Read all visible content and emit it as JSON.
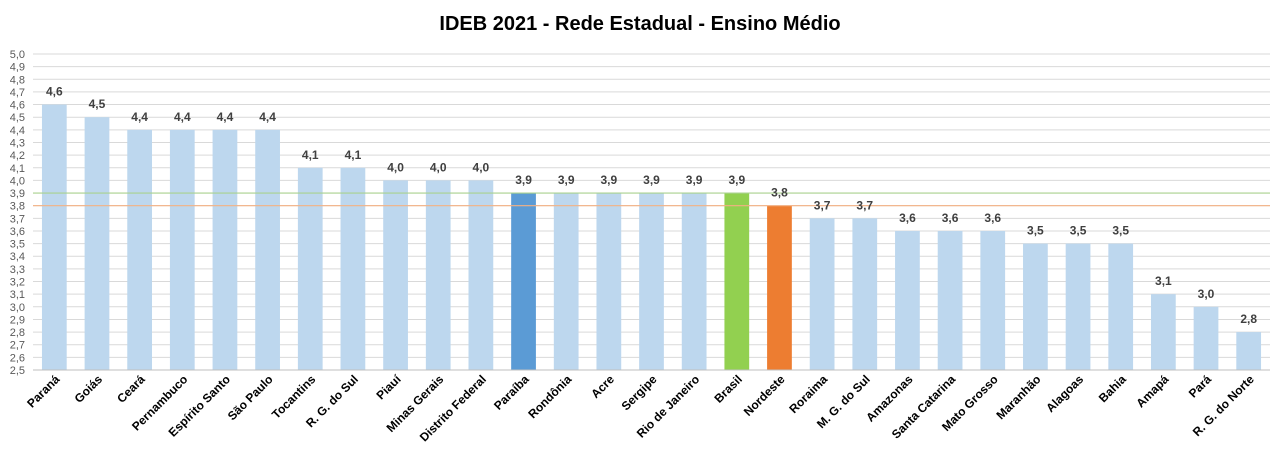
{
  "chart_data": {
    "type": "bar",
    "title": "IDEB 2021 - Rede Estadual - Ensino Médio",
    "xlabel": "",
    "ylabel": "",
    "ylim": [
      2.5,
      5.0
    ],
    "ytick_step": 0.1,
    "decimal_separator": ",",
    "grid": true,
    "categories": [
      "Paraná",
      "Goiás",
      "Ceará",
      "Pernambuco",
      "Espírito Santo",
      "São Paulo",
      "Tocantins",
      "R. G. do Sul",
      "Piauí",
      "Minas Gerais",
      "Distrito Federal",
      "Paraíba",
      "Rondônia",
      "Acre",
      "Sergipe",
      "Rio de Janeiro",
      "Brasil",
      "Nordeste",
      "Roraima",
      "M. G. do Sul",
      "Amazonas",
      "Santa Catarina",
      "Mato Grosso",
      "Maranhão",
      "Alagoas",
      "Bahia",
      "Amapá",
      "Pará",
      "R. G. do Norte"
    ],
    "values": [
      4.6,
      4.5,
      4.4,
      4.4,
      4.4,
      4.4,
      4.1,
      4.1,
      4.0,
      4.0,
      4.0,
      3.9,
      3.9,
      3.9,
      3.9,
      3.9,
      3.9,
      3.8,
      3.7,
      3.7,
      3.6,
      3.6,
      3.6,
      3.5,
      3.5,
      3.5,
      3.1,
      3.0,
      2.8
    ],
    "value_labels": [
      "4,6",
      "4,5",
      "4,4",
      "4,4",
      "4,4",
      "4,4",
      "4,1",
      "4,1",
      "4,0",
      "4,0",
      "4,0",
      "3,9",
      "3,9",
      "3,9",
      "3,9",
      "3,9",
      "3,9",
      "3,8",
      "3,7",
      "3,7",
      "3,6",
      "3,6",
      "3,6",
      "3,5",
      "3,5",
      "3,5",
      "3,1",
      "3,0",
      "2,8"
    ],
    "colors": {
      "default": "#bdd7ee",
      "highlight": {
        "Paraíba": "#5b9bd5",
        "Brasil": "#92d050",
        "Nordeste": "#ed7d31"
      }
    },
    "reference_lines": [
      {
        "value": 3.9,
        "color": "#a9d18e"
      },
      {
        "value": 3.8,
        "color": "#f4b183"
      }
    ]
  }
}
